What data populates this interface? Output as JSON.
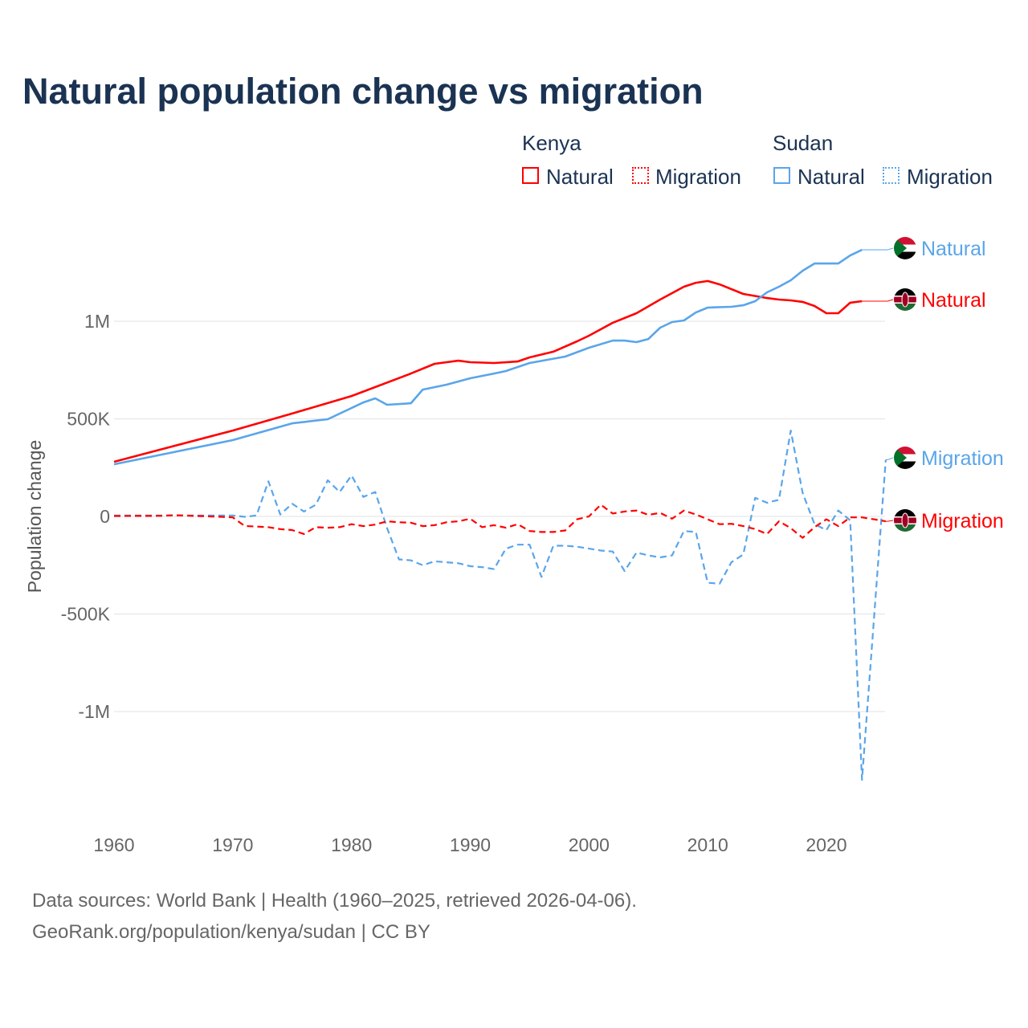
{
  "chart_data": {
    "type": "line",
    "title": "Natural population change vs migration",
    "ylabel": "Population change",
    "xlabel": "",
    "xlim": [
      1960,
      2025
    ],
    "ylim": [
      -1500000,
      1500000
    ],
    "xticks": [
      "1960",
      "1970",
      "1980",
      "1990",
      "2000",
      "2010",
      "2020"
    ],
    "yticks": [
      {
        "v": 1000000,
        "label": "1M"
      },
      {
        "v": 500000,
        "label": "500K"
      },
      {
        "v": 0,
        "label": "0"
      },
      {
        "v": -500000,
        "label": "-500K"
      },
      {
        "v": -1000000,
        "label": "-1M"
      }
    ],
    "grid": true,
    "legend_position": "top-right",
    "legend": {
      "groups": [
        {
          "country": "Kenya",
          "items": [
            "Natural",
            "Migration"
          ]
        },
        {
          "country": "Sudan",
          "items": [
            "Natural",
            "Migration"
          ]
        }
      ]
    },
    "series": [
      {
        "name": "Kenya Natural",
        "label": "Natural",
        "color": "#ff0000",
        "dash": false,
        "x": [
          1960,
          1965,
          1970,
          1975,
          1980,
          1985,
          1987,
          1989,
          1990,
          1992,
          1994,
          1995,
          1997,
          1999,
          2000,
          2002,
          2004,
          2006,
          2008,
          2009,
          2010,
          2011,
          2013,
          2015,
          2016,
          2017,
          2018,
          2019,
          2020,
          2021,
          2022,
          2023
        ],
        "y": [
          280000,
          360000,
          440000,
          527000,
          617000,
          732000,
          782000,
          798000,
          790000,
          786000,
          794000,
          815000,
          844000,
          897000,
          926000,
          992000,
          1041000,
          1111000,
          1177000,
          1197000,
          1206000,
          1189000,
          1140000,
          1119000,
          1111000,
          1107000,
          1099000,
          1078000,
          1041000,
          1041000,
          1095000,
          1103000
        ]
      },
      {
        "name": "Sudan Natural",
        "label": "Natural",
        "color": "#5aa5ea",
        "dash": false,
        "x": [
          1960,
          1970,
          1975,
          1978,
          1981,
          1982,
          1983,
          1985,
          1986,
          1988,
          1990,
          1992,
          1993,
          1995,
          1998,
          2000,
          2002,
          2003,
          2004,
          2005,
          2006,
          2007,
          2008,
          2009,
          2010,
          2012,
          2013,
          2014,
          2015,
          2016,
          2017,
          2018,
          2019,
          2020,
          2021,
          2022,
          2023
        ],
        "y": [
          267000,
          391000,
          477000,
          498000,
          584000,
          605000,
          572000,
          580000,
          650000,
          675000,
          708000,
          732000,
          745000,
          786000,
          819000,
          864000,
          901000,
          901000,
          893000,
          909000,
          967000,
          996000,
          1004000,
          1045000,
          1070000,
          1074000,
          1082000,
          1103000,
          1148000,
          1177000,
          1210000,
          1259000,
          1296000,
          1296000,
          1296000,
          1337000,
          1366000
        ]
      },
      {
        "name": "Sudan Migration",
        "label": "Migration",
        "color": "#5aa5ea",
        "dash": true,
        "x": [
          1960,
          1965,
          1970,
          1971,
          1972,
          1973,
          1974,
          1975,
          1976,
          1977,
          1978,
          1979,
          1980,
          1981,
          1982,
          1983,
          1984,
          1985,
          1986,
          1987,
          1988,
          1989,
          1990,
          1991,
          1992,
          1993,
          1994,
          1995,
          1996,
          1997,
          1998,
          1999,
          2000,
          2001,
          2002,
          2003,
          2004,
          2005,
          2006,
          2007,
          2008,
          2009,
          2010,
          2011,
          2012,
          2013,
          2014,
          2015,
          2016,
          2017,
          2018,
          2019,
          2020,
          2021,
          2022,
          2023,
          2024,
          2025
        ],
        "y": [
          5000,
          5000,
          5000,
          -2000,
          5000,
          180000,
          10000,
          65000,
          25000,
          60000,
          185000,
          125000,
          210000,
          100000,
          125000,
          -60000,
          -220000,
          -225000,
          -250000,
          -230000,
          -235000,
          -240000,
          -255000,
          -260000,
          -270000,
          -165000,
          -145000,
          -145000,
          -310000,
          -150000,
          -150000,
          -155000,
          -165000,
          -175000,
          -180000,
          -280000,
          -185000,
          -200000,
          -210000,
          -200000,
          -75000,
          -80000,
          -340000,
          -345000,
          -235000,
          -195000,
          95000,
          70000,
          85000,
          440000,
          120000,
          -40000,
          -70000,
          30000,
          -20000,
          -1350000,
          -530000,
          290000
        ]
      },
      {
        "name": "Kenya Migration",
        "label": "Migration",
        "color": "#ff0000",
        "dash": true,
        "x": [
          1960,
          1964,
          1965,
          1969,
          1970,
          1971,
          1973,
          1974,
          1975,
          1976,
          1977,
          1978,
          1979,
          1980,
          1981,
          1982,
          1983,
          1984,
          1985,
          1986,
          1987,
          1988,
          1989,
          1990,
          1991,
          1992,
          1993,
          1994,
          1995,
          1996,
          1997,
          1998,
          1999,
          2000,
          2001,
          2002,
          2003,
          2004,
          2005,
          2006,
          2007,
          2008,
          2009,
          2010,
          2011,
          2012,
          2013,
          2014,
          2015,
          2016,
          2017,
          2018,
          2019,
          2020,
          2021,
          2022,
          2023,
          2024,
          2025
        ],
        "y": [
          2000,
          3000,
          6000,
          -2000,
          -5000,
          -49000,
          -55000,
          -65000,
          -70000,
          -90000,
          -55000,
          -58000,
          -55000,
          -40000,
          -50000,
          -42000,
          -25000,
          -30000,
          -32000,
          -50000,
          -45000,
          -30000,
          -25000,
          -12000,
          -55000,
          -45000,
          -58000,
          -40000,
          -75000,
          -80000,
          -80000,
          -72000,
          -15000,
          0,
          60000,
          15000,
          25000,
          30000,
          8000,
          18000,
          -12000,
          30000,
          10000,
          -15000,
          -40000,
          -38000,
          -50000,
          -65000,
          -90000,
          -25000,
          -60000,
          -110000,
          -55000,
          -15000,
          -50000,
          -5000,
          -5000,
          -15000,
          -25000
        ]
      }
    ]
  },
  "footer": {
    "line1": "Data sources: World Bank | Health (1960–2025, retrieved 2026-04-06).",
    "line2": "GeoRank.org/population/kenya/sudan | CC BY"
  }
}
